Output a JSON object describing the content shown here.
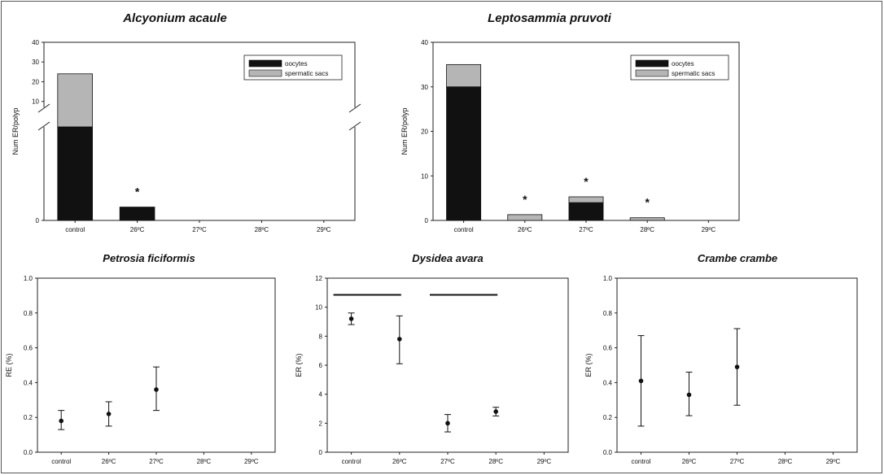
{
  "chart_data": [
    {
      "type": "bar",
      "title": "Alcyonium acaule",
      "ylabel": "Num ER/polyp",
      "xlabel": "",
      "ylim": [
        0,
        40
      ],
      "axis_break": true,
      "yticks": [
        "0",
        "10",
        "20",
        "30",
        "40"
      ],
      "categories": [
        "control",
        "26ºC",
        "27ºC",
        "28ºC",
        "29ºC"
      ],
      "stacked": true,
      "series": [
        {
          "name": "oocytes",
          "values": [
            7,
            1,
            0,
            0,
            0
          ],
          "color": "#111111"
        },
        {
          "name": "spermatic sacs",
          "values": [
            17,
            0,
            0,
            0,
            0
          ],
          "color": "#b5b5b5"
        }
      ],
      "annotations": [
        "",
        "*",
        "",
        "",
        ""
      ],
      "legend": "top-right"
    },
    {
      "type": "bar",
      "title": "Leptosammia pruvoti",
      "ylabel": "Num ER/polyp",
      "xlabel": "",
      "ylim": [
        0,
        40
      ],
      "yticks": [
        "0",
        "10",
        "20",
        "30",
        "40"
      ],
      "categories": [
        "control",
        "26ºC",
        "27ºC",
        "28ºC",
        "29ºC"
      ],
      "stacked": true,
      "series": [
        {
          "name": "oocytes",
          "values": [
            30,
            0,
            4,
            0,
            0
          ],
          "color": "#111111"
        },
        {
          "name": "spermatic sacs",
          "values": [
            5,
            1.3,
            1.3,
            0.6,
            0
          ],
          "color": "#b5b5b5"
        }
      ],
      "annotations": [
        "",
        "*",
        "*",
        "*",
        ""
      ],
      "legend": "top-right"
    },
    {
      "type": "scatter",
      "title": "Petrosia ficiformis",
      "ylabel": "RE (%)",
      "xlabel": "",
      "ylim": [
        0,
        1.0
      ],
      "yticks": [
        "0.0",
        "0.2",
        "0.4",
        "0.6",
        "0.8",
        "1.0"
      ],
      "categories": [
        "control",
        "26ºC",
        "27ºC",
        "28ºC",
        "29ºC"
      ],
      "series": [
        {
          "values": [
            0.18,
            0.22,
            0.36,
            null,
            null
          ],
          "err_low": [
            0.13,
            0.15,
            0.24,
            null,
            null
          ],
          "err_high": [
            0.24,
            0.29,
            0.49,
            null,
            null
          ]
        }
      ],
      "bars": []
    },
    {
      "type": "scatter",
      "title": "Dysidea avara",
      "ylabel": "ER (%)",
      "xlabel": "",
      "ylim": [
        0,
        12
      ],
      "yticks": [
        "0",
        "2",
        "4",
        "6",
        "8",
        "10",
        "12"
      ],
      "categories": [
        "control",
        "26ºC",
        "27ºC",
        "28ºC",
        "29ºC"
      ],
      "series": [
        {
          "values": [
            9.2,
            7.8,
            2.0,
            2.8,
            null
          ],
          "err_low": [
            8.8,
            6.1,
            1.4,
            2.5,
            null
          ],
          "err_high": [
            9.6,
            9.4,
            2.6,
            3.1,
            null
          ]
        }
      ],
      "bars": [
        {
          "from": "control",
          "to": "26ºC",
          "y": 10.85
        },
        {
          "from": "27ºC",
          "to": "28ºC",
          "y": 10.85
        }
      ]
    },
    {
      "type": "scatter",
      "title": "Crambe crambe",
      "ylabel": "ER (%)",
      "xlabel": "",
      "ylim": [
        0,
        1.0
      ],
      "yticks": [
        "0.0",
        "0.2",
        "0.4",
        "0.6",
        "0.8",
        "1.0"
      ],
      "categories": [
        "control",
        "26ºC",
        "27ºC",
        "28ºC",
        "29ºC"
      ],
      "series": [
        {
          "values": [
            0.41,
            0.33,
            0.49,
            null,
            null
          ],
          "err_low": [
            0.15,
            0.21,
            0.27,
            null,
            null
          ],
          "err_high": [
            0.67,
            0.46,
            0.71,
            null,
            null
          ]
        }
      ],
      "bars": []
    }
  ]
}
